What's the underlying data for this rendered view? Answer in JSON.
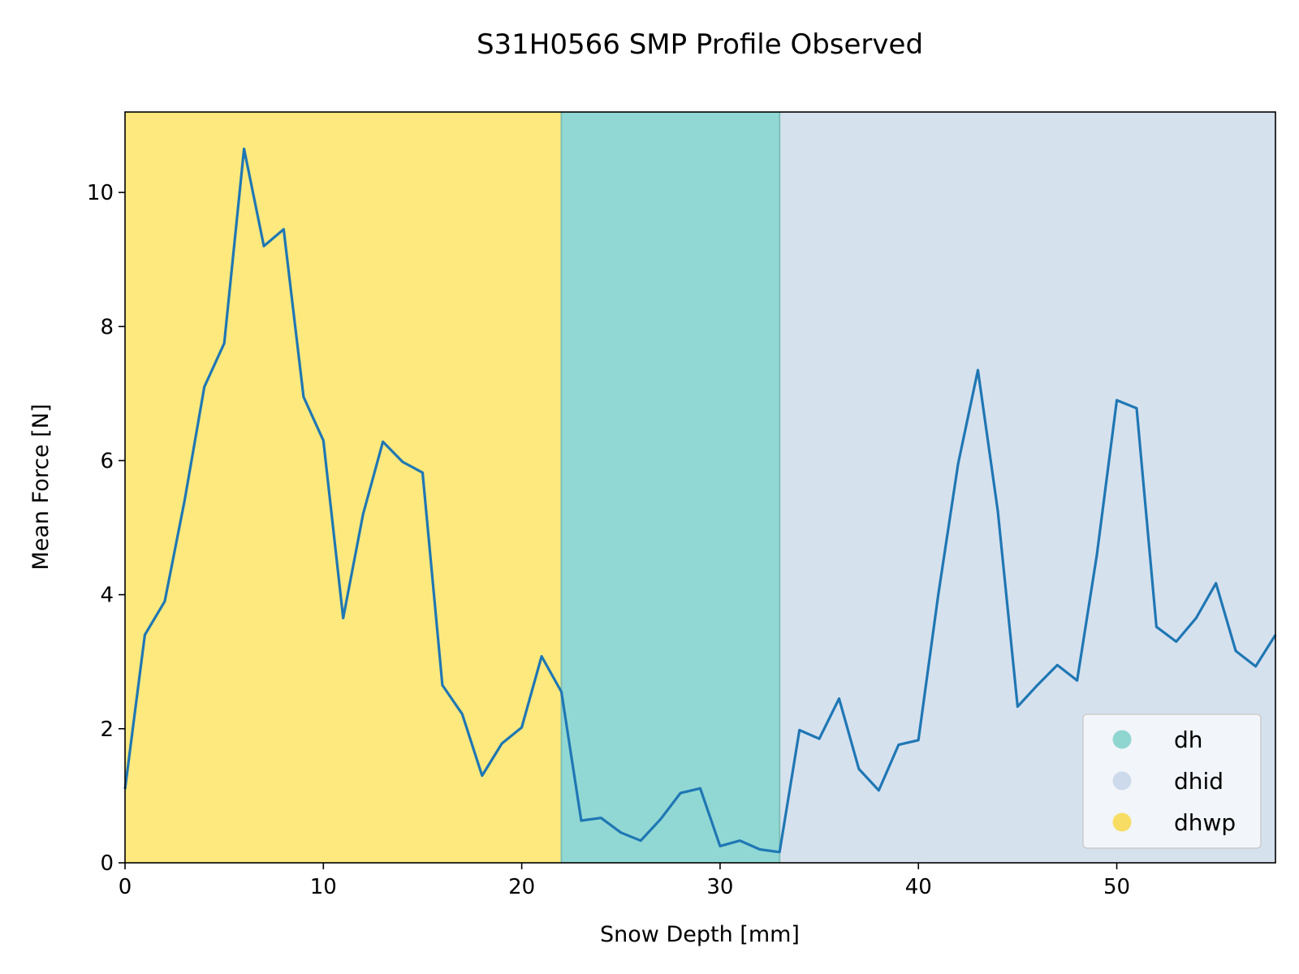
{
  "chart_data": {
    "type": "line",
    "title": "S31H0566 SMP Profile Observed",
    "xlabel": "Snow Depth [mm]",
    "ylabel": "Mean Force [N]",
    "xlim": [
      0,
      58
    ],
    "ylim": [
      0,
      11.2
    ],
    "xticks": [
      0,
      10,
      20,
      30,
      40,
      50
    ],
    "yticks": [
      0,
      2,
      4,
      6,
      8,
      10
    ],
    "grid": false,
    "legend_position": "lower-right",
    "series": [
      {
        "color": "#1f77b4",
        "x": [
          0,
          1,
          2,
          3,
          4,
          5,
          6,
          7,
          8,
          9,
          10,
          11,
          12,
          13,
          14,
          15,
          16,
          17,
          18,
          19,
          20,
          21,
          22,
          23,
          24,
          25,
          26,
          27,
          28,
          29,
          30,
          31,
          32,
          33,
          34,
          35,
          36,
          37,
          38,
          39,
          40,
          41,
          42,
          43,
          44,
          45,
          46,
          47,
          48,
          49,
          50,
          51,
          52,
          53,
          54,
          55,
          56,
          57,
          58
        ],
        "y": [
          1.1,
          3.4,
          3.9,
          5.4,
          7.1,
          7.75,
          10.65,
          9.2,
          9.45,
          6.95,
          6.3,
          3.65,
          5.2,
          6.28,
          5.98,
          5.82,
          2.65,
          2.22,
          1.3,
          1.78,
          2.02,
          3.08,
          2.55,
          0.63,
          0.67,
          0.45,
          0.33,
          0.65,
          1.04,
          1.11,
          0.25,
          0.33,
          0.2,
          0.16,
          1.98,
          1.85,
          2.45,
          1.4,
          1.08,
          1.76,
          1.83,
          4.0,
          5.95,
          7.35,
          5.25,
          2.33,
          2.65,
          2.95,
          2.72,
          4.6,
          6.9,
          6.78,
          3.52,
          3.3,
          3.65,
          4.17,
          3.16,
          2.93,
          3.4
        ]
      }
    ],
    "regions": [
      {
        "label": "dhwp",
        "x_start": 0,
        "x_end": 22,
        "color": "#fde97e"
      },
      {
        "label": "dh",
        "x_start": 22,
        "x_end": 33,
        "color": "#91d8d4"
      },
      {
        "label": "dhid",
        "x_start": 33,
        "x_end": 58,
        "color": "#d6e1ee"
      }
    ],
    "legend": [
      {
        "label": "dh",
        "color": "#8fd6d1"
      },
      {
        "label": "dhid",
        "color": "#ccdaeb"
      },
      {
        "label": "dhwp",
        "color": "#f7dd63"
      }
    ]
  }
}
